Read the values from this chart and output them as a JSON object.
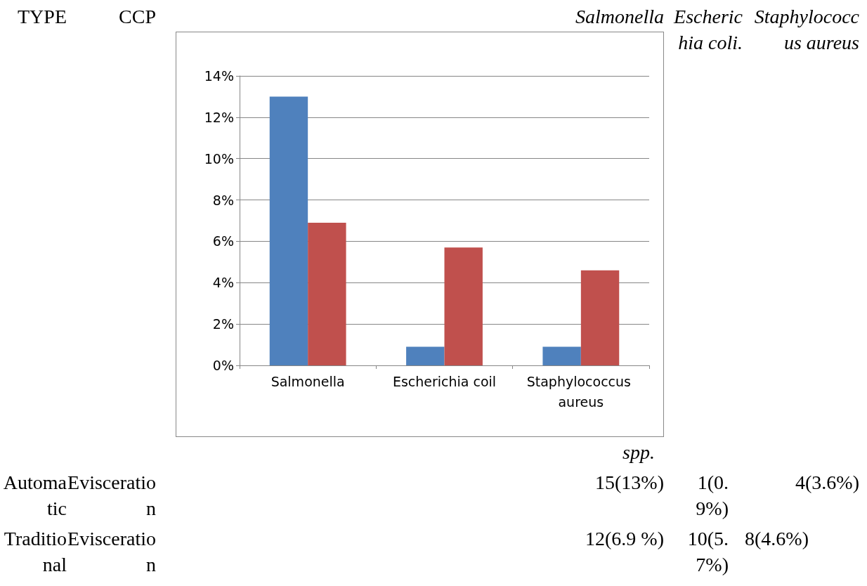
{
  "chart_data": {
    "type": "bar",
    "categories": [
      "Salmonella",
      "Escherichia coil",
      "Staphylococcus aureus"
    ],
    "series": [
      {
        "color": "#4f81bd",
        "values": [
          13,
          0.9,
          0.9
        ]
      },
      {
        "color": "#c0504d",
        "values": [
          6.9,
          5.7,
          4.6
        ]
      }
    ],
    "ylim": [
      0,
      14
    ],
    "yticks": [
      {
        "value": 0,
        "label": "0%"
      },
      {
        "value": 2,
        "label": "2%"
      },
      {
        "value": 4,
        "label": "4%"
      },
      {
        "value": 6,
        "label": "6%"
      },
      {
        "value": 8,
        "label": "8%"
      },
      {
        "value": 10,
        "label": "10%"
      },
      {
        "value": 12,
        "label": "12%"
      },
      {
        "value": 14,
        "label": "14%"
      }
    ],
    "grid": "y",
    "annotations": [
      "TYPE",
      "CCP",
      "Salmonella",
      "Escherichia coli.",
      "Staphylococcus aureus",
      "spp.",
      "Automatic",
      "Evisceration",
      "15(13%)",
      "1(0.9%)",
      "4(3.6%)",
      "Traditional",
      "Evisceration",
      "12(6.9 %)",
      "10(5.7%)",
      "8(4.6%)"
    ]
  }
}
